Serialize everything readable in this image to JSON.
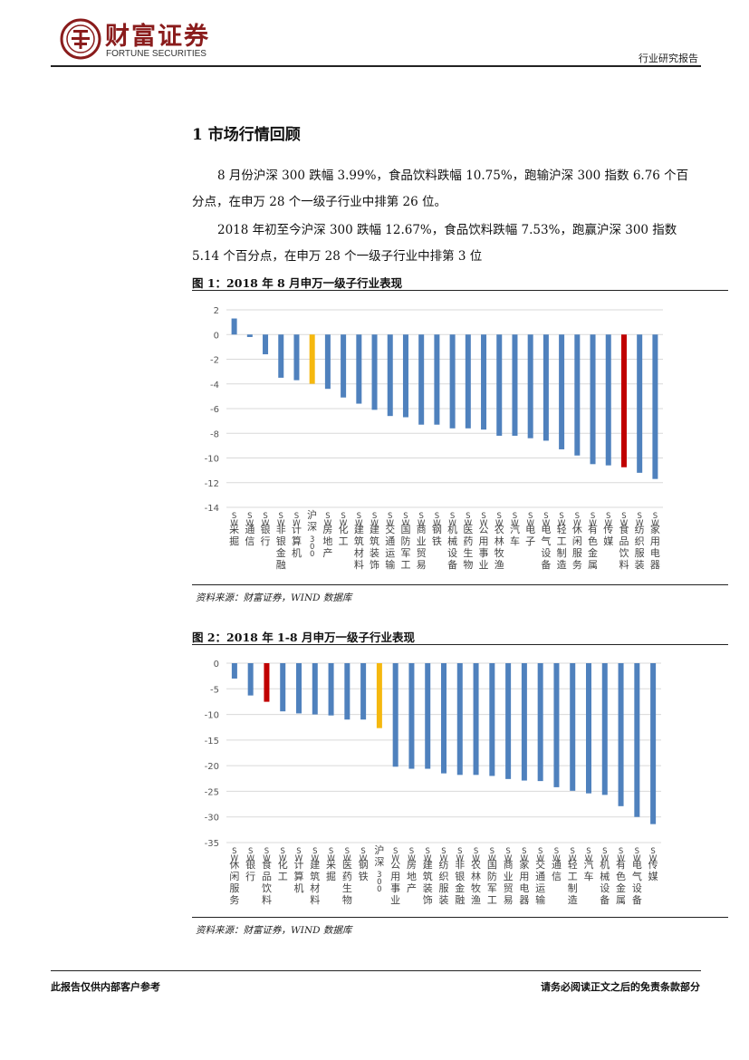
{
  "header": {
    "brand_cn": "财富证券",
    "brand_en": "FORTUNE SECURITIES",
    "report_type": "行业研究报告"
  },
  "section": {
    "title": "1 市场行情回顾"
  },
  "paragraphs": [
    "8 月份沪深 300 跌幅 3.99%，食品饮料跌幅 10.75%，跑输沪深 300 指数 6.76 个百分点，在申万 28 个一级子行业中排第 26 位。",
    "2018 年初至今沪深 300 跌幅 12.67%，食品饮料跌幅 7.53%，跑赢沪深 300 指数 5.14 个百分点，在申万 28 个一级子行业中排第 3 位"
  ],
  "figures": [
    {
      "title": "图 1：2018 年 8 月申万一级子行业表现",
      "source": "资料来源：财富证券，WIND 数据库"
    },
    {
      "title": "图 2：2018 年 1-8 月申万一级子行业表现",
      "source": "资料来源：财富证券，WIND 数据库"
    }
  ],
  "colors": {
    "bar_default": "#4f81bd",
    "bar_benchmark": "#f5b80f",
    "bar_highlight": "#c00000",
    "grid": "#d9d9d9"
  },
  "chart_data": [
    {
      "type": "bar",
      "title": "图 1：2018 年 8 月申万一级子行业表现",
      "ylim": [
        -14,
        2
      ],
      "yticks": [
        2,
        0,
        -2,
        -4,
        -6,
        -8,
        -10,
        -12,
        -14
      ],
      "grid": true,
      "categories": [
        "SW采掘",
        "SW通信",
        "SW银行",
        "SW非银金融",
        "SW计算机",
        "沪深300",
        "SW房地产",
        "SW化工",
        "SW建筑材料",
        "SW建筑装饰",
        "SW交通运输",
        "SW国防军工",
        "SW商业贸易",
        "SW钢铁",
        "SW机械设备",
        "SW医药生物",
        "SW公用事业",
        "SW农林牧渔",
        "SW汽车",
        "SW电子",
        "SW电气设备",
        "SW轻工制造",
        "SW休闲服务",
        "SW有色金属",
        "SW传媒",
        "SW食品饮料",
        "SW纺织服装",
        "SW家用电器"
      ],
      "values": [
        1.3,
        -0.2,
        -1.6,
        -3.5,
        -3.7,
        -3.99,
        -4.4,
        -5.1,
        -5.6,
        -6.1,
        -6.6,
        -6.7,
        -7.3,
        -7.3,
        -7.6,
        -7.6,
        -7.7,
        -8.2,
        -8.2,
        -8.4,
        -8.6,
        -9.3,
        -9.8,
        -10.5,
        -10.6,
        -10.75,
        -11.2,
        -11.7
      ]
    },
    {
      "type": "bar",
      "title": "图 2：2018 年 1-8 月申万一级子行业表现",
      "ylim": [
        -35,
        0
      ],
      "yticks": [
        0,
        -5,
        -10,
        -15,
        -20,
        -25,
        -30,
        -35
      ],
      "grid": true,
      "categories": [
        "SW休闲服务",
        "SW银行",
        "SW食品饮料",
        "SW化工",
        "SW计算机",
        "SW建筑材料",
        "SW采掘",
        "SW医药生物",
        "SW钢铁",
        "沪深300",
        "SW公用事业",
        "SW房地产",
        "SW建筑装饰",
        "SW纺织服装",
        "SW非银金融",
        "SW农林牧渔",
        "SW国防军工",
        "SW商业贸易",
        "SW家用电器",
        "SW交通运输",
        "SW通信",
        "SW轻工制造",
        "SW汽车",
        "SW机械设备",
        "SW有色金属",
        "SW电气设备",
        "SW传媒"
      ],
      "values": [
        -3.0,
        -6.3,
        -7.53,
        -9.4,
        -9.8,
        -10.0,
        -10.2,
        -11.0,
        -11.0,
        -12.67,
        -20.2,
        -20.6,
        -20.6,
        -21.5,
        -21.8,
        -21.8,
        -22.0,
        -22.6,
        -22.9,
        -23.0,
        -24.2,
        -24.9,
        -25.4,
        -25.7,
        -27.9,
        -30.0,
        -31.4
      ],
      "extra_values": [
        -32.1
      ]
    }
  ],
  "footer": {
    "left": "此报告仅供内部客户参考",
    "right": "请务必阅读正文之后的免责条款部分"
  }
}
